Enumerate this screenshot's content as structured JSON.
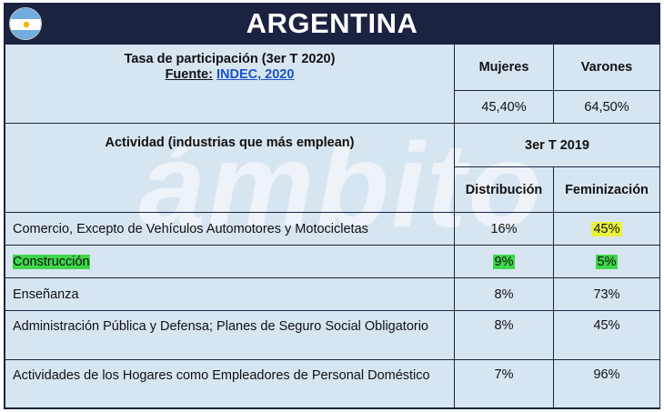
{
  "header": {
    "title": "ARGENTINA",
    "flag_icon": "argentina-flag-icon"
  },
  "watermark": "ámbito",
  "participation": {
    "title": "Tasa de participación (3er T 2020)",
    "source_label": "Fuente:",
    "source_link": "INDEC, 2020",
    "col_women": "Mujeres",
    "col_men": "Varones",
    "value_women": "45,40%",
    "value_men": "64,50%"
  },
  "activity": {
    "title": "Actividad (industrias que más emplean)",
    "period": "3er T 2019",
    "col_distribution": "Distribución",
    "col_feminization": "Feminización",
    "rows": [
      {
        "name": "Comercio, Excepto de Vehículos Automotores y Motocicletas",
        "distribution": "16%",
        "feminization": "45%"
      },
      {
        "name": "Construcción",
        "distribution": "9%",
        "feminization": "5%"
      },
      {
        "name": "Enseñanza",
        "distribution": "8%",
        "feminization": "73%"
      },
      {
        "name": "Administración Pública y Defensa; Planes de Seguro Social Obligatorio",
        "distribution": "8%",
        "feminization": "45%"
      },
      {
        "name": "Actividades de los Hogares como Empleadores de Personal Doméstico",
        "distribution": "7%",
        "feminization": "96%"
      }
    ]
  },
  "colors": {
    "header_bg": "#1b2340",
    "table_bg": "#d7e5f1",
    "highlight_yellow": "#eaf23a",
    "highlight_green": "#3fd64a",
    "link": "#1a52c8"
  }
}
